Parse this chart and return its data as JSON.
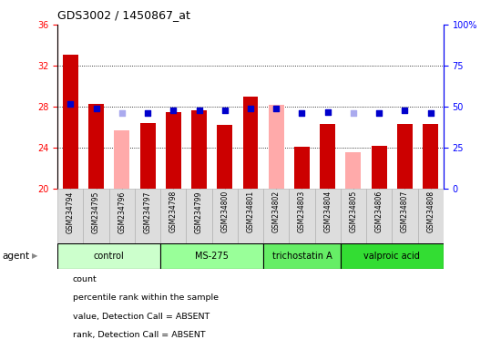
{
  "title": "GDS3002 / 1450867_at",
  "samples": [
    "GSM234794",
    "GSM234795",
    "GSM234796",
    "GSM234797",
    "GSM234798",
    "GSM234799",
    "GSM234800",
    "GSM234801",
    "GSM234802",
    "GSM234803",
    "GSM234804",
    "GSM234805",
    "GSM234806",
    "GSM234807",
    "GSM234808"
  ],
  "groups": [
    {
      "label": "control",
      "color": "#ccffcc",
      "start": 0,
      "end": 4
    },
    {
      "label": "MS-275",
      "color": "#99ff99",
      "start": 4,
      "end": 8
    },
    {
      "label": "trichostatin A",
      "color": "#66ee66",
      "start": 8,
      "end": 11
    },
    {
      "label": "valproic acid",
      "color": "#33dd33",
      "start": 11,
      "end": 15
    }
  ],
  "red_values": [
    33.1,
    28.3,
    null,
    26.4,
    27.5,
    27.7,
    26.2,
    29.0,
    null,
    24.1,
    26.3,
    null,
    24.2,
    26.3,
    26.3
  ],
  "pink_values": [
    null,
    null,
    25.7,
    null,
    null,
    null,
    null,
    null,
    28.2,
    null,
    null,
    23.6,
    null,
    null,
    null
  ],
  "blue_pct": [
    52,
    49,
    null,
    46,
    48,
    48,
    48,
    49,
    49,
    46,
    47,
    null,
    46,
    48,
    46
  ],
  "light_blue_pct": [
    null,
    null,
    46,
    null,
    null,
    null,
    null,
    null,
    null,
    null,
    null,
    46,
    null,
    null,
    null
  ],
  "ylim_left": [
    20,
    36
  ],
  "ylim_right": [
    0,
    100
  ],
  "yticks_left": [
    20,
    24,
    28,
    32,
    36
  ],
  "yticks_right": [
    0,
    25,
    50,
    75,
    100
  ],
  "ytick_labels_right": [
    "0",
    "25",
    "50",
    "75",
    "100%"
  ],
  "red_color": "#cc0000",
  "pink_color": "#ffaaaa",
  "blue_color": "#0000cc",
  "light_blue_color": "#aaaaee",
  "bar_width": 0.6,
  "dot_size": 25,
  "background_color": "#ffffff",
  "grid_color": "#000000",
  "agent_label": "agent",
  "legend_labels": [
    "count",
    "percentile rank within the sample",
    "value, Detection Call = ABSENT",
    "rank, Detection Call = ABSENT"
  ]
}
